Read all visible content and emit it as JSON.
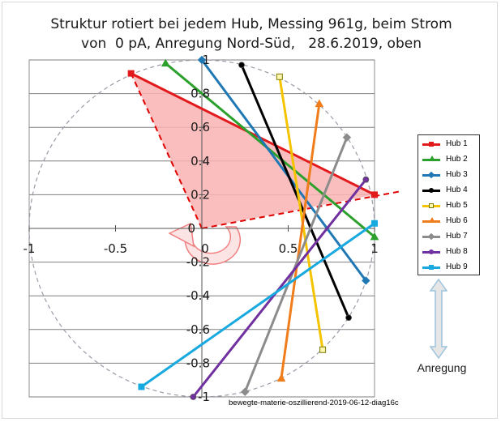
{
  "title_line1": "Struktur rotiert bei jedem Hub, Messing 961g, beim Strom",
  "title_line2": "von  0 pA, Anregung Nord-Süd,   28.6.2019, oben",
  "footnote": "bewegte-materie-oszillierend-2019-06-12-diag16c",
  "anregung_label": "Anregung",
  "colors": {
    "triangle_fill": "#f9b3b3",
    "triangle_edge": "#e00000",
    "circle": "#9a9aa8",
    "grid": "#7f7f7f",
    "arrow": "#f08080"
  },
  "chart_data": {
    "type": "scatter",
    "title": "Struktur rotiert bei jedem Hub, Messing 961g, beim Strom von  0 pA, Anregung Nord-Süd,   28.6.2019, oben",
    "xlim": [
      -1,
      1
    ],
    "ylim": [
      -1,
      1
    ],
    "x_ticks": [
      -1,
      -0.5,
      0,
      0.5,
      1
    ],
    "x_tick_labels": [
      "-1",
      "-0.5",
      "0",
      "0.5",
      "1"
    ],
    "y_ticks": [
      -1,
      -0.8,
      -0.6,
      -0.4,
      -0.2,
      0,
      0.2,
      0.4,
      0.6,
      0.8,
      1
    ],
    "y_tick_labels": [
      "-1",
      "-0.8",
      "-0.6",
      "-0.4",
      "-0.2",
      "0",
      "0.2",
      "0.4",
      "0.6",
      "0.8",
      "1"
    ],
    "grid": "horizontal",
    "legend_position": "right",
    "unit_circle": true,
    "triangle": [
      [
        0,
        0
      ],
      [
        -0.41,
        0.92
      ],
      [
        1.0,
        0.2
      ]
    ],
    "triangle_extension": [
      [
        1.15,
        0.22
      ]
    ],
    "series": [
      {
        "name": "Hub 1",
        "color": "#e31a1c",
        "marker": "square",
        "points": [
          [
            -0.41,
            0.92
          ],
          [
            1.0,
            0.2
          ]
        ]
      },
      {
        "name": "Hub 2",
        "color": "#2ca02c",
        "marker": "triangle",
        "points": [
          [
            -0.21,
            0.98
          ],
          [
            1.0,
            -0.05
          ]
        ]
      },
      {
        "name": "Hub 3",
        "color": "#1f78b4",
        "marker": "diamond",
        "points": [
          [
            0.0,
            1.0
          ],
          [
            0.95,
            -0.31
          ]
        ]
      },
      {
        "name": "Hub 4",
        "color": "#000000",
        "marker": "circle",
        "points": [
          [
            0.23,
            0.97
          ],
          [
            0.85,
            -0.53
          ]
        ]
      },
      {
        "name": "Hub 5",
        "color": "#f5c400",
        "marker": "square",
        "points": [
          [
            0.45,
            0.9
          ],
          [
            0.7,
            -0.72
          ]
        ]
      },
      {
        "name": "Hub 6",
        "color": "#f07c1a",
        "marker": "triangle",
        "points": [
          [
            0.68,
            0.74
          ],
          [
            0.46,
            -0.89
          ]
        ]
      },
      {
        "name": "Hub 7",
        "color": "#8c8c8c",
        "marker": "diamond",
        "points": [
          [
            0.84,
            0.54
          ],
          [
            0.25,
            -0.97
          ]
        ]
      },
      {
        "name": "Hub 8",
        "color": "#7030a0",
        "marker": "circle",
        "points": [
          [
            0.95,
            0.29
          ],
          [
            -0.05,
            -1.0
          ]
        ]
      },
      {
        "name": "Hub 9",
        "color": "#17a9e0",
        "marker": "square",
        "points": [
          [
            1.0,
            0.03
          ],
          [
            -0.35,
            -0.94
          ]
        ]
      }
    ]
  }
}
